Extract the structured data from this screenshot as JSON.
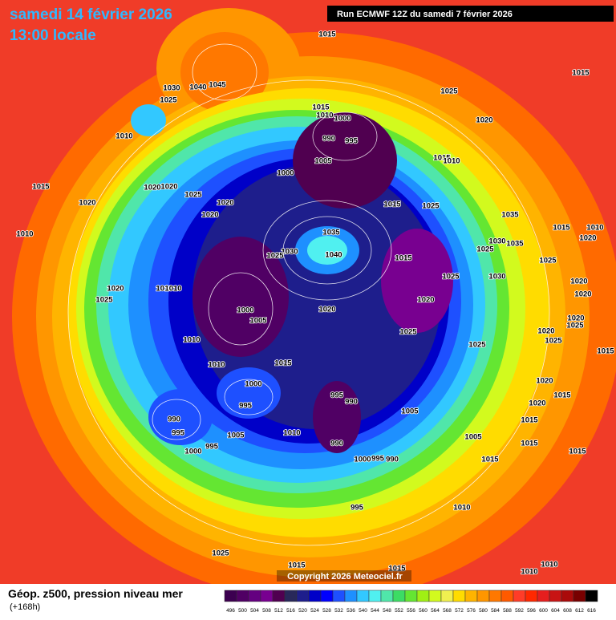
{
  "header": {
    "date": "samedi 14 février 2026",
    "time": "13:00 locale",
    "run": "Run ECMWF 12Z du samedi 7 février 2026"
  },
  "footer": {
    "title": "Géop. z500, pression niveau mer",
    "lead": "(+168h)",
    "copyright": "Copyright 2026 Meteociel.fr"
  },
  "legend": {
    "values": [
      496,
      500,
      504,
      508,
      512,
      516,
      520,
      524,
      528,
      532,
      536,
      540,
      544,
      548,
      552,
      556,
      560,
      564,
      568,
      572,
      576,
      580,
      584,
      588,
      592,
      596,
      600,
      604,
      608,
      612,
      616
    ],
    "colors": [
      "#3c0050",
      "#500064",
      "#640080",
      "#780090",
      "#500050",
      "#28285a",
      "#1e1e8c",
      "#0000c8",
      "#0000ff",
      "#1e50ff",
      "#1e90ff",
      "#32c8ff",
      "#50f0f0",
      "#50e6aa",
      "#3cdc64",
      "#64e632",
      "#a0f014",
      "#d2fa1e",
      "#f0f050",
      "#ffdc00",
      "#ffb400",
      "#ff9600",
      "#ff7800",
      "#ff5a00",
      "#ff3c28",
      "#ff2800",
      "#e61e1e",
      "#c81414",
      "#aa0a0a",
      "#780000",
      "#000000"
    ]
  },
  "pressure_labels": [
    1015,
    1015,
    1025,
    1030,
    1040,
    1045,
    1015,
    1010,
    1000,
    990,
    995,
    1005,
    1000,
    1025,
    1020,
    1015,
    1010,
    1010,
    1015,
    1020,
    1020,
    1025,
    1020,
    1020,
    1020,
    1015,
    1025,
    1035,
    1010,
    1035,
    1040,
    1030,
    1025,
    1015,
    1035,
    1030,
    1025,
    1015,
    1010,
    1020,
    1025,
    1030,
    1025,
    1020,
    1025,
    1010,
    1010,
    1000,
    1005,
    1020,
    1020,
    1020,
    1020,
    1020,
    1025,
    1010,
    1025,
    1025,
    1020,
    1025,
    1015,
    1010,
    1015,
    1000,
    995,
    995,
    990,
    1020,
    1015,
    1020,
    1005,
    990,
    995,
    1005,
    1010,
    1015,
    990,
    1005,
    1015,
    1000,
    995,
    1000,
    995,
    990,
    1015,
    1015,
    995,
    1010,
    1025,
    1015,
    1015,
    1010,
    1010
  ]
}
